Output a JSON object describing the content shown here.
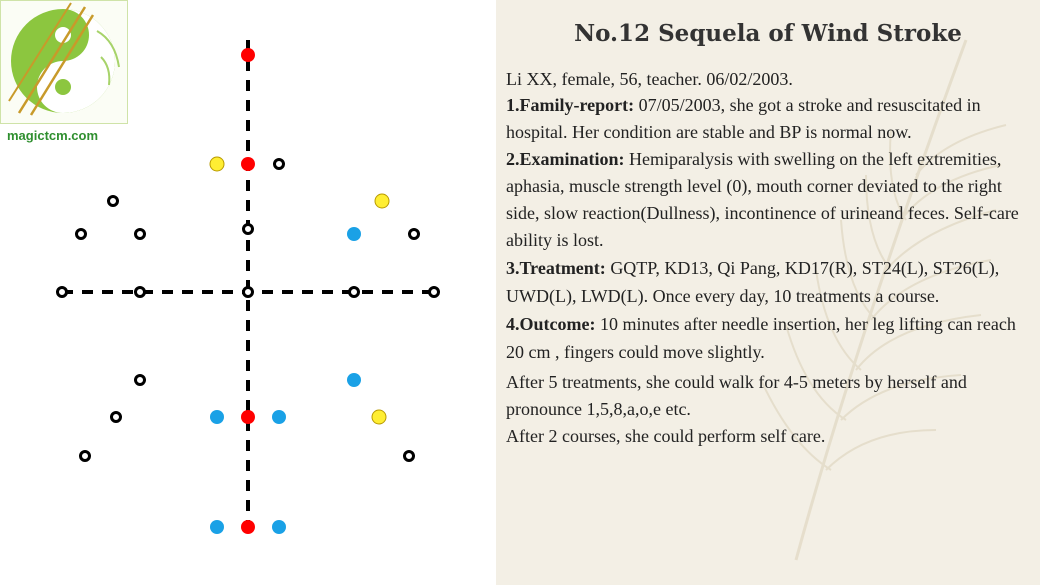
{
  "logo": {
    "brand_text": "magictcm.com",
    "icon": "yin-yang-needles-logo"
  },
  "diagram": {
    "colors": {
      "red": "#ff0000",
      "yellow": "#ffee33",
      "blue": "#1aa1e6",
      "open": "#000000",
      "axis": "#000000"
    },
    "points": [
      {
        "color": "red"
      },
      {
        "color": "yellow"
      },
      {
        "color": "red"
      },
      {
        "color": "open"
      },
      {
        "color": "open"
      },
      {
        "color": "yellow"
      },
      {
        "color": "open"
      },
      {
        "color": "open"
      },
      {
        "color": "open"
      },
      {
        "color": "blue"
      },
      {
        "color": "open"
      },
      {
        "color": "open"
      },
      {
        "color": "open"
      },
      {
        "color": "open"
      },
      {
        "color": "open"
      },
      {
        "color": "open"
      },
      {
        "color": "open"
      },
      {
        "color": "blue"
      },
      {
        "color": "open"
      },
      {
        "color": "blue"
      },
      {
        "color": "red"
      },
      {
        "color": "blue"
      },
      {
        "color": "yellow"
      },
      {
        "color": "open"
      },
      {
        "color": "open"
      },
      {
        "color": "blue"
      },
      {
        "color": "red"
      },
      {
        "color": "blue"
      }
    ]
  },
  "case": {
    "title": "No.12 Sequela of Wind Stroke",
    "intro": "Li XX, female, 56, teacher. 06/02/2003.",
    "family_label": "1.Family-report:",
    "family_text": " 07/05/2003, she got a stroke and resuscitated in hospital. Her condition are stable and BP is normal now.",
    "exam_label": "2.Examination:",
    "exam_text": "  Hemiparalysis with swelling on the left extremities, aphasia, muscle strength level (0), mouth corner deviated to the right side, slow reaction(Dullness),  incontinence of urineand feces. Self-care ability is lost.",
    "treat_label": "3.Treatment:",
    "treat_text": " GQTP, KD13, Qi Pang, KD17(R), ST24(L), ST26(L), UWD(L), LWD(L). Once every day, 10 treatments a course.",
    "outcome_label": "4.Outcome:",
    "outcome_text": " 10 minutes after needle insertion, her leg lifting can reach 20 cm , fingers could move slightly.",
    "after5": "After 5 treatments, she could walk for 4-5 meters by herself and pronounce 1,5,8,a,o,e etc.",
    "after2": "After 2 courses, she could perform self care."
  }
}
